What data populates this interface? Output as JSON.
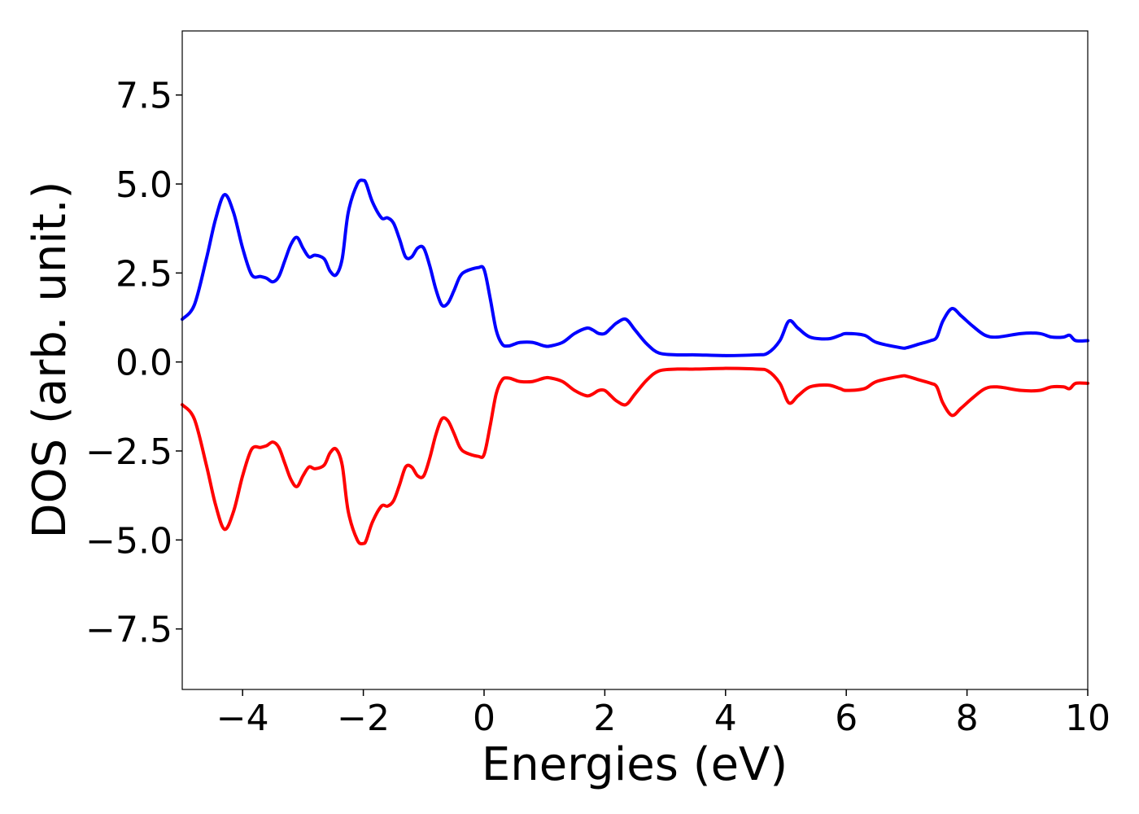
{
  "chart_data": {
    "type": "line",
    "title": "",
    "xlabel": "Energies (eV)",
    "ylabel": "DOS (arb. unit.)",
    "xlim": [
      -5,
      10
    ],
    "ylim": [
      -9.2,
      9.3
    ],
    "xticks": [
      -4,
      -2,
      0,
      2,
      4,
      6,
      8,
      10
    ],
    "xtick_labels": [
      "−4",
      "−2",
      "0",
      "2",
      "4",
      "6",
      "8",
      "10"
    ],
    "yticks": [
      7.5,
      5.0,
      2.5,
      0.0,
      -2.5,
      -5.0,
      -7.5
    ],
    "ytick_labels": [
      "7.5",
      "5.0",
      "2.5",
      "0.0",
      "−2.5",
      "−5.0",
      "−7.5"
    ],
    "grid": false,
    "legend": "none",
    "series": [
      {
        "color": "#0000ff",
        "x": [
          -5.0,
          -4.8,
          -4.6,
          -4.45,
          -4.3,
          -4.15,
          -4.0,
          -3.85,
          -3.7,
          -3.6,
          -3.5,
          -3.4,
          -3.3,
          -3.2,
          -3.1,
          -3.0,
          -2.9,
          -2.8,
          -2.65,
          -2.55,
          -2.45,
          -2.35,
          -2.25,
          -2.1,
          -2.0,
          -1.95,
          -1.85,
          -1.7,
          -1.6,
          -1.5,
          -1.4,
          -1.3,
          -1.2,
          -1.1,
          -1.0,
          -0.9,
          -0.8,
          -0.7,
          -0.6,
          -0.5,
          -0.4,
          -0.3,
          -0.1,
          0.0,
          0.1,
          0.2,
          0.3,
          0.4,
          0.5,
          0.6,
          0.8,
          1.0,
          1.1,
          1.3,
          1.5,
          1.7,
          1.8,
          1.9,
          2.0,
          2.1,
          2.2,
          2.35,
          2.5,
          2.7,
          2.9,
          3.2,
          3.5,
          4.0,
          4.5,
          4.7,
          4.9,
          5.05,
          5.2,
          5.4,
          5.7,
          5.9,
          6.0,
          6.3,
          6.5,
          6.9,
          7.0,
          7.2,
          7.4,
          7.5,
          7.6,
          7.75,
          7.9,
          8.1,
          8.3,
          8.5,
          8.9,
          9.2,
          9.4,
          9.6,
          9.7,
          9.8,
          10.0
        ],
        "y": [
          1.2,
          1.6,
          2.9,
          4.0,
          4.7,
          4.2,
          3.2,
          2.45,
          2.4,
          2.35,
          2.25,
          2.4,
          2.85,
          3.3,
          3.5,
          3.2,
          2.95,
          3.0,
          2.9,
          2.55,
          2.45,
          2.9,
          4.2,
          5.0,
          5.1,
          5.0,
          4.5,
          4.05,
          4.05,
          3.9,
          3.45,
          2.95,
          2.95,
          3.2,
          3.2,
          2.7,
          2.05,
          1.6,
          1.65,
          2.0,
          2.4,
          2.55,
          2.65,
          2.6,
          1.8,
          0.9,
          0.5,
          0.45,
          0.5,
          0.55,
          0.55,
          0.45,
          0.45,
          0.55,
          0.8,
          0.95,
          0.9,
          0.8,
          0.8,
          0.95,
          1.1,
          1.2,
          0.9,
          0.5,
          0.25,
          0.2,
          0.2,
          0.18,
          0.2,
          0.25,
          0.6,
          1.15,
          0.95,
          0.7,
          0.65,
          0.75,
          0.8,
          0.75,
          0.55,
          0.4,
          0.4,
          0.5,
          0.6,
          0.7,
          1.15,
          1.5,
          1.3,
          1.0,
          0.75,
          0.7,
          0.8,
          0.8,
          0.7,
          0.7,
          0.75,
          0.6,
          0.6
        ]
      },
      {
        "color": "#ff0000",
        "x": [
          -5.0,
          -4.8,
          -4.6,
          -4.45,
          -4.3,
          -4.15,
          -4.0,
          -3.85,
          -3.7,
          -3.6,
          -3.5,
          -3.4,
          -3.3,
          -3.2,
          -3.1,
          -3.0,
          -2.9,
          -2.8,
          -2.65,
          -2.55,
          -2.45,
          -2.35,
          -2.25,
          -2.1,
          -2.0,
          -1.95,
          -1.85,
          -1.7,
          -1.6,
          -1.5,
          -1.4,
          -1.3,
          -1.2,
          -1.1,
          -1.0,
          -0.9,
          -0.8,
          -0.7,
          -0.6,
          -0.5,
          -0.4,
          -0.3,
          -0.1,
          0.0,
          0.1,
          0.2,
          0.3,
          0.4,
          0.5,
          0.6,
          0.8,
          1.0,
          1.1,
          1.3,
          1.5,
          1.7,
          1.8,
          1.9,
          2.0,
          2.1,
          2.2,
          2.35,
          2.5,
          2.7,
          2.9,
          3.2,
          3.5,
          4.0,
          4.5,
          4.7,
          4.9,
          5.05,
          5.2,
          5.4,
          5.7,
          5.9,
          6.0,
          6.3,
          6.5,
          6.9,
          7.0,
          7.2,
          7.4,
          7.5,
          7.6,
          7.75,
          7.9,
          8.1,
          8.3,
          8.5,
          8.9,
          9.2,
          9.4,
          9.6,
          9.7,
          9.8,
          10.0
        ],
        "y": [
          -1.2,
          -1.6,
          -2.9,
          -4.0,
          -4.7,
          -4.2,
          -3.2,
          -2.45,
          -2.4,
          -2.35,
          -2.25,
          -2.4,
          -2.85,
          -3.3,
          -3.5,
          -3.2,
          -2.95,
          -3.0,
          -2.9,
          -2.55,
          -2.45,
          -2.9,
          -4.2,
          -5.0,
          -5.1,
          -5.0,
          -4.5,
          -4.05,
          -4.05,
          -3.9,
          -3.45,
          -2.95,
          -2.95,
          -3.2,
          -3.2,
          -2.7,
          -2.05,
          -1.6,
          -1.65,
          -2.0,
          -2.4,
          -2.55,
          -2.65,
          -2.6,
          -1.8,
          -0.9,
          -0.5,
          -0.45,
          -0.5,
          -0.55,
          -0.55,
          -0.45,
          -0.45,
          -0.55,
          -0.8,
          -0.95,
          -0.9,
          -0.8,
          -0.8,
          -0.95,
          -1.1,
          -1.2,
          -0.9,
          -0.5,
          -0.25,
          -0.2,
          -0.2,
          -0.18,
          -0.2,
          -0.25,
          -0.6,
          -1.15,
          -0.95,
          -0.7,
          -0.65,
          -0.75,
          -0.8,
          -0.75,
          -0.55,
          -0.4,
          -0.4,
          -0.5,
          -0.6,
          -0.7,
          -1.15,
          -1.5,
          -1.3,
          -1.0,
          -0.75,
          -0.7,
          -0.8,
          -0.8,
          -0.7,
          -0.7,
          -0.75,
          -0.6,
          -0.6
        ]
      }
    ]
  }
}
